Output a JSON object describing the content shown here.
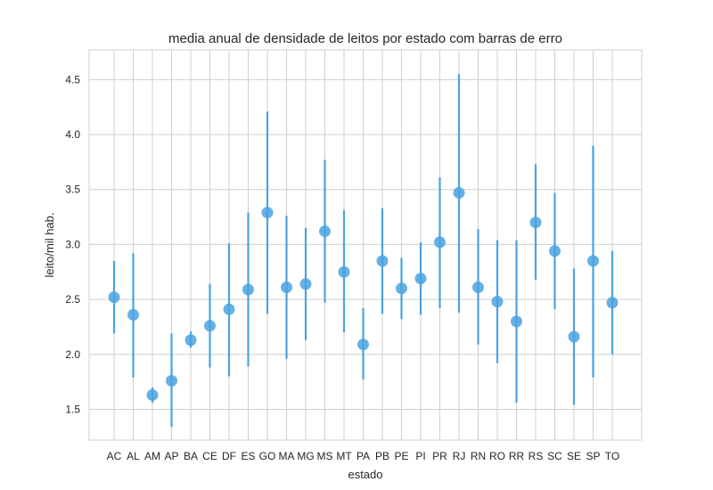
{
  "chart_data": {
    "type": "scatter",
    "title": "media anual de densidade de leitos por estado com barras de erro",
    "xlabel": "estado",
    "ylabel": "leito/mil hab.",
    "ylim": [
      1.22,
      4.77
    ],
    "yticks": [
      1.5,
      2.0,
      2.5,
      3.0,
      3.5,
      4.0,
      4.5
    ],
    "ytick_labels": [
      "1.5",
      "2.0",
      "2.5",
      "3.0",
      "3.5",
      "4.0",
      "4.5"
    ],
    "grid": true,
    "color": "#4aa3e0",
    "categories": [
      "AC",
      "AL",
      "AM",
      "AP",
      "BA",
      "CE",
      "DF",
      "ES",
      "GO",
      "MA",
      "MG",
      "MS",
      "MT",
      "PA",
      "PB",
      "PE",
      "PI",
      "PR",
      "RJ",
      "RN",
      "RO",
      "RR",
      "RS",
      "SC",
      "SE",
      "SP",
      "TO"
    ],
    "values": [
      2.52,
      2.36,
      1.63,
      1.76,
      2.13,
      2.26,
      2.41,
      2.59,
      3.29,
      2.61,
      2.64,
      3.12,
      2.75,
      2.09,
      2.85,
      2.6,
      2.69,
      3.02,
      3.47,
      2.61,
      2.48,
      2.3,
      3.2,
      2.94,
      2.16,
      2.85,
      2.47
    ],
    "err_low": [
      2.19,
      1.79,
      1.56,
      1.34,
      2.06,
      1.88,
      1.8,
      1.89,
      2.37,
      1.96,
      2.13,
      2.47,
      2.2,
      1.77,
      2.37,
      2.32,
      2.36,
      2.42,
      2.38,
      2.09,
      1.92,
      1.56,
      2.68,
      2.41,
      1.54,
      1.79,
      2.0
    ],
    "err_high": [
      2.85,
      2.92,
      1.7,
      2.19,
      2.21,
      2.64,
      3.01,
      3.29,
      4.21,
      3.26,
      3.15,
      3.77,
      3.31,
      2.42,
      3.33,
      2.88,
      3.02,
      3.61,
      4.55,
      3.14,
      3.04,
      3.04,
      3.73,
      3.47,
      2.78,
      3.9,
      2.94
    ]
  }
}
